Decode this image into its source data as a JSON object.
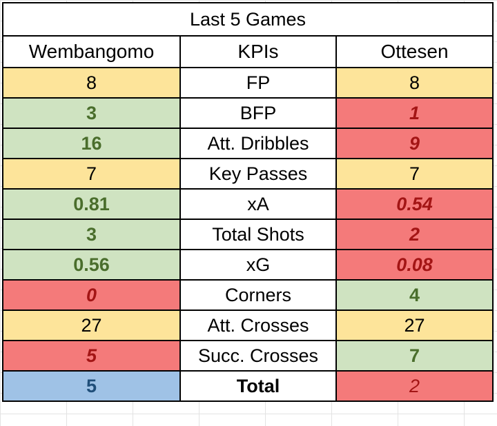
{
  "table": {
    "title": "Last 5 Games",
    "headers": {
      "left": "Wembangomo",
      "middle": "KPIs",
      "right": "Ottesen"
    },
    "rows": [
      {
        "kpi": "FP",
        "left": "8",
        "right": "8"
      },
      {
        "kpi": "BFP",
        "left": "3",
        "right": "1"
      },
      {
        "kpi": "Att. Dribbles",
        "left": "16",
        "right": "9"
      },
      {
        "kpi": "Key Passes",
        "left": "7",
        "right": "7"
      },
      {
        "kpi": "xA",
        "left": "0.81",
        "right": "0.54"
      },
      {
        "kpi": "Total Shots",
        "left": "3",
        "right": "2"
      },
      {
        "kpi": "xG",
        "left": "0.56",
        "right": "0.08"
      },
      {
        "kpi": "Corners",
        "left": "0",
        "right": "4"
      },
      {
        "kpi": "Att. Crosses",
        "left": "27",
        "right": "27"
      },
      {
        "kpi": "Succ. Crosses",
        "left": "5",
        "right": "7"
      }
    ],
    "total": {
      "kpi": "Total",
      "left": "5",
      "right": "2"
    }
  },
  "colors": {
    "tie": "#fde49a",
    "better": "#cfe3c1",
    "worse": "#f47a7a",
    "winner_total": "#9fc2e6"
  }
}
